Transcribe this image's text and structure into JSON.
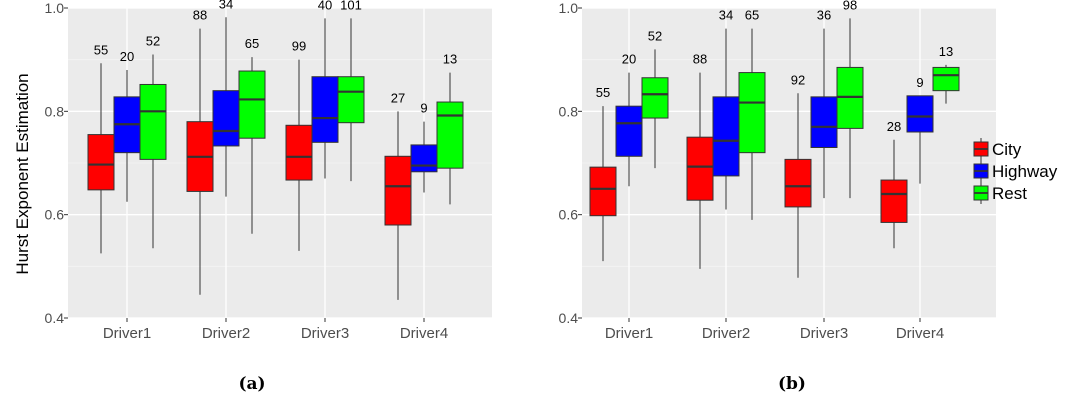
{
  "ylabel": "Hurst Exponent Estimation",
  "legend": {
    "items": [
      {
        "label": "City",
        "color": "#FF0000"
      },
      {
        "label": "Highway",
        "color": "#0000FF"
      },
      {
        "label": "Rest",
        "color": "#00FF00"
      }
    ]
  },
  "chart_data": [
    {
      "type": "boxplot",
      "caption": "(a)",
      "categories": [
        "Driver1",
        "Driver2",
        "Driver3",
        "Driver4"
      ],
      "ylim": [
        0.4,
        1.0
      ],
      "yticks": [
        0.4,
        0.6,
        0.8,
        1.0
      ],
      "ytick_labels": [
        "0.4",
        "0.6",
        "0.8",
        "1.0"
      ],
      "grid": true,
      "series": [
        {
          "name": "City",
          "color": "#FF0000",
          "boxes": [
            {
              "min": 0.525,
              "q1": 0.648,
              "median": 0.697,
              "q3": 0.755,
              "max": 0.893,
              "n": "55"
            },
            {
              "min": 0.445,
              "q1": 0.645,
              "median": 0.712,
              "q3": 0.78,
              "max": 0.96,
              "n": "88"
            },
            {
              "min": 0.53,
              "q1": 0.667,
              "median": 0.712,
              "q3": 0.773,
              "max": 0.9,
              "n": "99"
            },
            {
              "min": 0.435,
              "q1": 0.58,
              "median": 0.655,
              "q3": 0.713,
              "max": 0.8,
              "n": "27"
            }
          ]
        },
        {
          "name": "Highway",
          "color": "#0000FF",
          "boxes": [
            {
              "min": 0.625,
              "q1": 0.72,
              "median": 0.775,
              "q3": 0.828,
              "max": 0.88,
              "n": "20"
            },
            {
              "min": 0.635,
              "q1": 0.733,
              "median": 0.762,
              "q3": 0.84,
              "max": 0.982,
              "n": "34"
            },
            {
              "min": 0.67,
              "q1": 0.74,
              "median": 0.787,
              "q3": 0.867,
              "max": 0.98,
              "n": "40"
            },
            {
              "min": 0.643,
              "q1": 0.683,
              "median": 0.695,
              "q3": 0.735,
              "max": 0.78,
              "n": "9"
            }
          ]
        },
        {
          "name": "Rest",
          "color": "#00FF00",
          "boxes": [
            {
              "min": 0.535,
              "q1": 0.707,
              "median": 0.8,
              "q3": 0.852,
              "max": 0.91,
              "n": "52"
            },
            {
              "min": 0.563,
              "q1": 0.748,
              "median": 0.823,
              "q3": 0.878,
              "max": 0.905,
              "n": "65"
            },
            {
              "min": 0.665,
              "q1": 0.778,
              "median": 0.838,
              "q3": 0.867,
              "max": 0.98,
              "n": "101"
            },
            {
              "min": 0.62,
              "q1": 0.69,
              "median": 0.792,
              "q3": 0.818,
              "max": 0.875,
              "n": "13"
            }
          ]
        }
      ]
    },
    {
      "type": "boxplot",
      "caption": "(b)",
      "categories": [
        "Driver1",
        "Driver2",
        "Driver3",
        "Driver4"
      ],
      "ylim": [
        0.4,
        1.0
      ],
      "yticks": [
        0.4,
        0.6,
        0.8,
        1.0
      ],
      "ytick_labels": [
        "0.4",
        "0.6",
        "0.8",
        "1.0"
      ],
      "grid": true,
      "series": [
        {
          "name": "City",
          "color": "#FF0000",
          "boxes": [
            {
              "min": 0.51,
              "q1": 0.598,
              "median": 0.65,
              "q3": 0.692,
              "max": 0.81,
              "n": "55"
            },
            {
              "min": 0.495,
              "q1": 0.628,
              "median": 0.693,
              "q3": 0.75,
              "max": 0.875,
              "n": "88"
            },
            {
              "min": 0.478,
              "q1": 0.615,
              "median": 0.655,
              "q3": 0.707,
              "max": 0.835,
              "n": "92"
            },
            {
              "min": 0.535,
              "q1": 0.585,
              "median": 0.64,
              "q3": 0.667,
              "max": 0.745,
              "n": "28"
            }
          ]
        },
        {
          "name": "Highway",
          "color": "#0000FF",
          "boxes": [
            {
              "min": 0.655,
              "q1": 0.713,
              "median": 0.777,
              "q3": 0.81,
              "max": 0.875,
              "n": "20"
            },
            {
              "min": 0.61,
              "q1": 0.675,
              "median": 0.743,
              "q3": 0.828,
              "max": 0.96,
              "n": "34"
            },
            {
              "min": 0.632,
              "q1": 0.73,
              "median": 0.77,
              "q3": 0.828,
              "max": 0.96,
              "n": "36"
            },
            {
              "min": 0.66,
              "q1": 0.76,
              "median": 0.79,
              "q3": 0.83,
              "max": 0.83,
              "n": "9"
            }
          ]
        },
        {
          "name": "Rest",
          "color": "#00FF00",
          "boxes": [
            {
              "min": 0.69,
              "q1": 0.787,
              "median": 0.833,
              "q3": 0.865,
              "max": 0.92,
              "n": "52"
            },
            {
              "min": 0.59,
              "q1": 0.72,
              "median": 0.817,
              "q3": 0.875,
              "max": 0.96,
              "n": "65"
            },
            {
              "min": 0.632,
              "q1": 0.767,
              "median": 0.828,
              "q3": 0.885,
              "max": 0.98,
              "n": "98"
            },
            {
              "min": 0.815,
              "q1": 0.84,
              "median": 0.87,
              "q3": 0.885,
              "max": 0.89,
              "n": "13"
            }
          ]
        }
      ]
    }
  ]
}
